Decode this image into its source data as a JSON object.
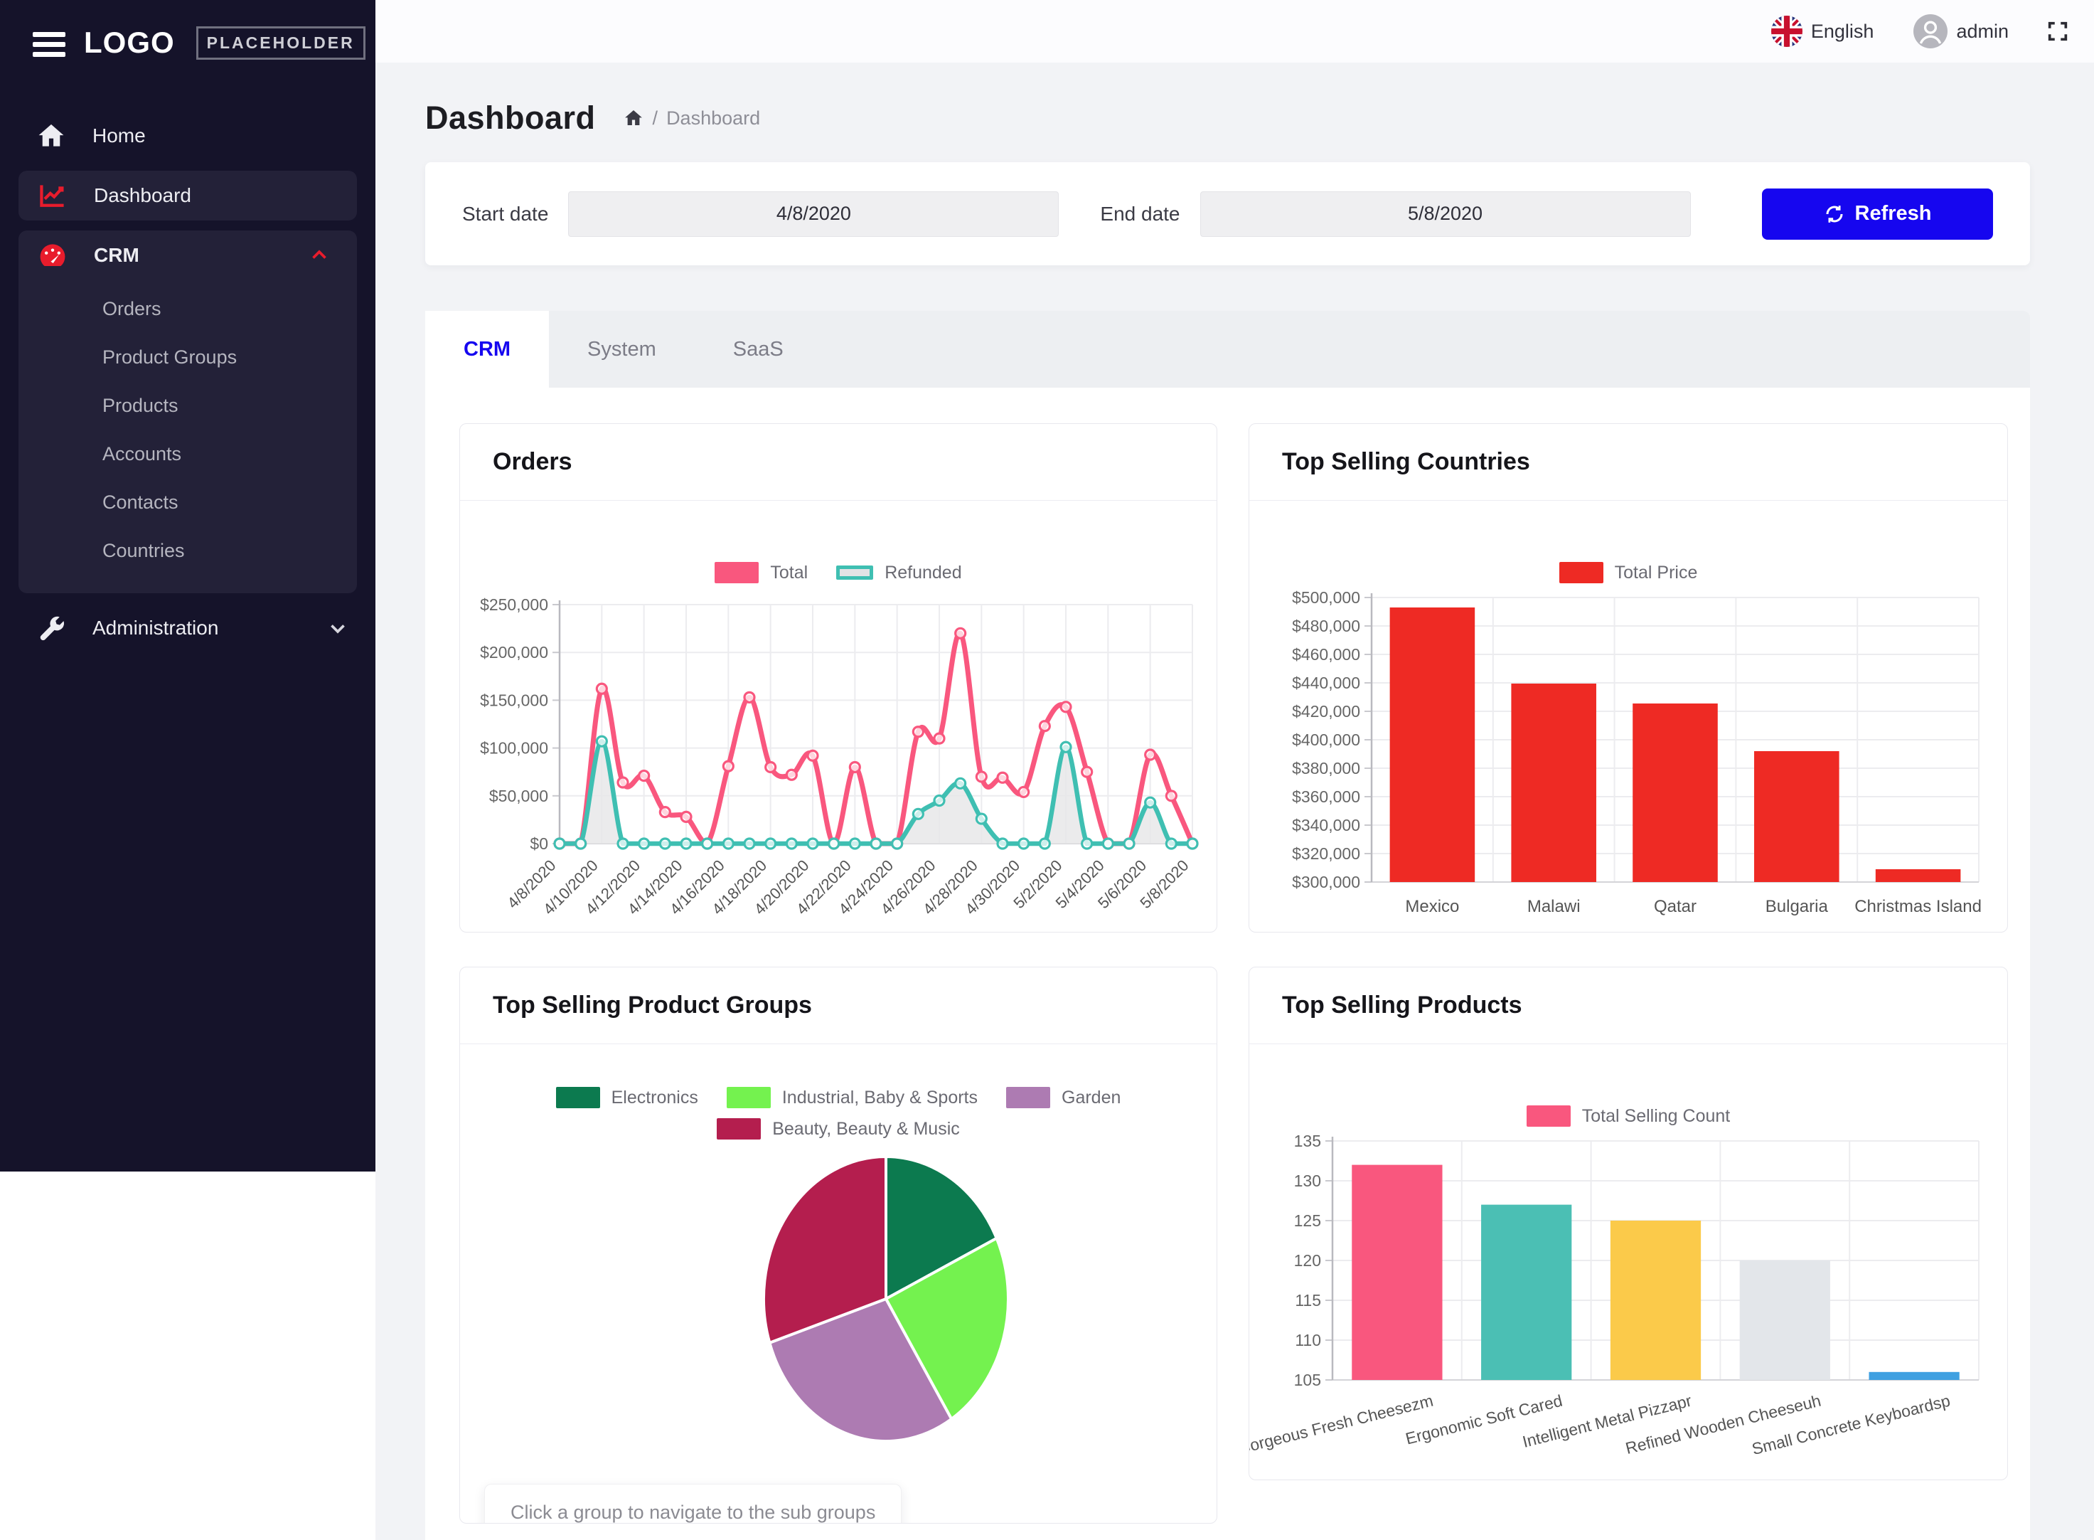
{
  "topbar": {
    "language": "English",
    "username": "admin"
  },
  "sidebar": {
    "logo_main": "LOGO",
    "logo_sub": "PLACEHOLDER",
    "home_label": "Home",
    "dashboard_label": "Dashboard",
    "crm": {
      "label": "CRM",
      "children": [
        "Orders",
        "Product Groups",
        "Products",
        "Accounts",
        "Contacts",
        "Countries"
      ]
    },
    "administration_label": "Administration"
  },
  "header": {
    "title": "Dashboard",
    "breadcrumb_separator": "/",
    "breadcrumb_current": "Dashboard"
  },
  "filters": {
    "start_label": "Start date",
    "start_value": "4/8/2020",
    "end_label": "End date",
    "end_value": "5/8/2020",
    "refresh_label": "Refresh"
  },
  "tabs": [
    {
      "label": "CRM",
      "active": true
    },
    {
      "label": "System",
      "active": false
    },
    {
      "label": "SaaS",
      "active": false
    }
  ],
  "colors": {
    "accent_red": "#e81c2c",
    "primary_blue": "#1606ef",
    "sidebar_bg": "#15132a",
    "page_bg": "#f2f3f6",
    "pink": "#f9577e",
    "teal": "#3fbfb2",
    "red_bar": "#ee2a24"
  },
  "chart_data": [
    {
      "id": "orders",
      "type": "line",
      "title": "Orders",
      "x": [
        "4/8/2020",
        "4/9/2020",
        "4/10/2020",
        "4/11/2020",
        "4/12/2020",
        "4/13/2020",
        "4/14/2020",
        "4/15/2020",
        "4/16/2020",
        "4/17/2020",
        "4/18/2020",
        "4/19/2020",
        "4/20/2020",
        "4/21/2020",
        "4/22/2020",
        "4/23/2020",
        "4/24/2020",
        "4/25/2020",
        "4/26/2020",
        "4/27/2020",
        "4/28/2020",
        "4/29/2020",
        "4/30/2020",
        "5/1/2020",
        "5/2/2020",
        "5/3/2020",
        "5/4/2020",
        "5/5/2020",
        "5/6/2020",
        "5/7/2020",
        "5/8/2020"
      ],
      "x_label_every": 2,
      "ylim": [
        0,
        250000
      ],
      "ytick": 50000,
      "y_prefix": "$",
      "grid": true,
      "legend_position": "top",
      "series": [
        {
          "name": "Total",
          "color": "#f9577e",
          "values": [
            0,
            0,
            162000,
            64000,
            71000,
            33000,
            28000,
            0,
            81000,
            153000,
            80000,
            72000,
            92000,
            0,
            80000,
            0,
            0,
            117000,
            110000,
            220000,
            70000,
            69000,
            54000,
            123000,
            143000,
            75000,
            0,
            0,
            93000,
            50000,
            0
          ]
        },
        {
          "name": "Refunded",
          "color": "#3fbfb2",
          "area_fill": "#e7e7e9",
          "values": [
            0,
            0,
            107000,
            0,
            0,
            0,
            0,
            0,
            0,
            0,
            0,
            0,
            0,
            0,
            0,
            0,
            0,
            31000,
            45000,
            63000,
            26000,
            0,
            0,
            0,
            101000,
            0,
            0,
            0,
            43000,
            0,
            0
          ]
        }
      ]
    },
    {
      "id": "countries",
      "type": "bar",
      "title": "Top Selling Countries",
      "legend": "Total Price",
      "bar_color": "#ee2a24",
      "categories": [
        "Mexico",
        "Malawi",
        "Qatar",
        "Bulgaria",
        "Christmas Island"
      ],
      "values": [
        493000,
        439500,
        425500,
        392000,
        309000
      ],
      "ylim": [
        300000,
        500000
      ],
      "ytick": 20000,
      "y_prefix": "$",
      "grid": true,
      "legend_position": "top"
    },
    {
      "id": "groups",
      "type": "pie",
      "title": "Top Selling Product Groups",
      "note": "Click a group to navigate to the sub groups",
      "slices": [
        {
          "label": "Electronics",
          "color": "#0c7a4f",
          "value": 18
        },
        {
          "label": "Industrial, Baby & Sports",
          "color": "#74f24f",
          "value": 23
        },
        {
          "label": "Garden",
          "color": "#ad7bb2",
          "value": 29
        },
        {
          "label": "Beauty, Beauty & Music",
          "color": "#b41e4e",
          "value": 30
        }
      ],
      "legend_position": "top"
    },
    {
      "id": "products",
      "type": "bar",
      "title": "Top Selling Products",
      "legend": "Total Selling Count",
      "legend_color": "#f9577e",
      "categories": [
        "Gorgeous Fresh Cheesezm",
        "Ergonomic Soft Cared",
        "Intelligent Metal Pizzapr",
        "Refined Wooden Cheeseuh",
        "Small Concrete Keyboardsp"
      ],
      "values": [
        132,
        127,
        125,
        120,
        106
      ],
      "bar_colors": [
        "#f9577e",
        "#4bbfb4",
        "#fbca4a",
        "#e3e6ea",
        "#3fa0e1"
      ],
      "ylim": [
        105,
        135
      ],
      "ytick": 5,
      "rotate_labels": -14,
      "grid": true,
      "legend_position": "top"
    }
  ]
}
